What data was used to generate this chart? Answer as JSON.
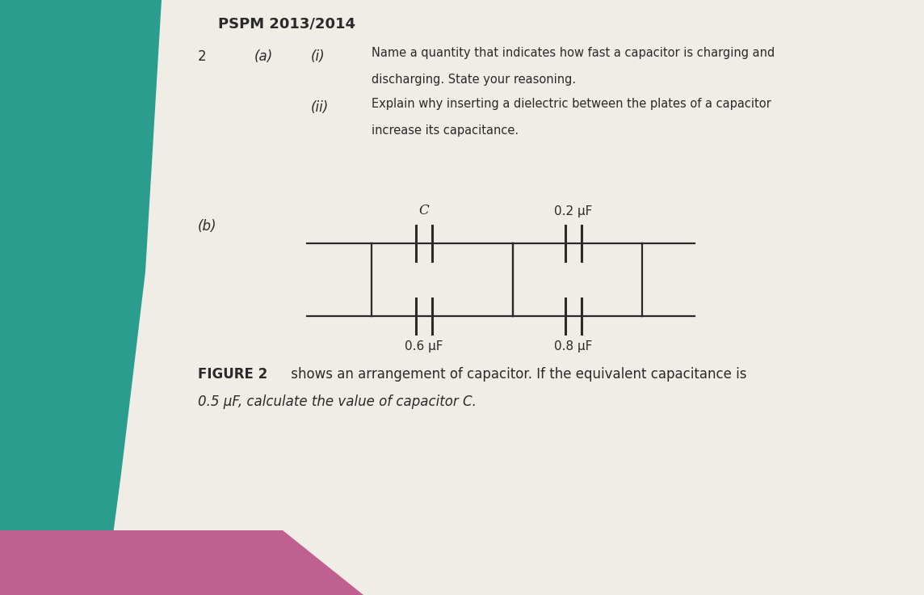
{
  "title": "PSPM 2013/2014",
  "question_num": "2",
  "part_a_label": "(a)",
  "part_i_label": "(i)",
  "part_ii_label": "(ii)",
  "text_i_line1": "Name a quantity that indicates how fast a capacitor is charging and",
  "text_i_line2": "discharging. State your reasoning.",
  "text_ii_line1": "Explain why inserting a dielectric between the plates of a capacitor",
  "text_ii_line2": "increase its capacitance.",
  "part_b_label": "(b)",
  "cap_C": "C",
  "cap_06": "0.6 μF",
  "cap_02": "0.2 μF",
  "cap_08": "0.8 μF",
  "fig2_bold": "FIGURE 2",
  "fig2_normal": " shows an arrangement of capacitor. If the equivalent capacitance is",
  "fig2_line2": "0.5 μF, calculate the value of capacitor C.",
  "teal_color": "#2a9d8f",
  "paper_color": "#e8e4de",
  "paper_dark": "#d4cfc8",
  "text_color": "#2a2a2a",
  "line_color": "#2a2a2a",
  "white_paper": "#f0ece6"
}
